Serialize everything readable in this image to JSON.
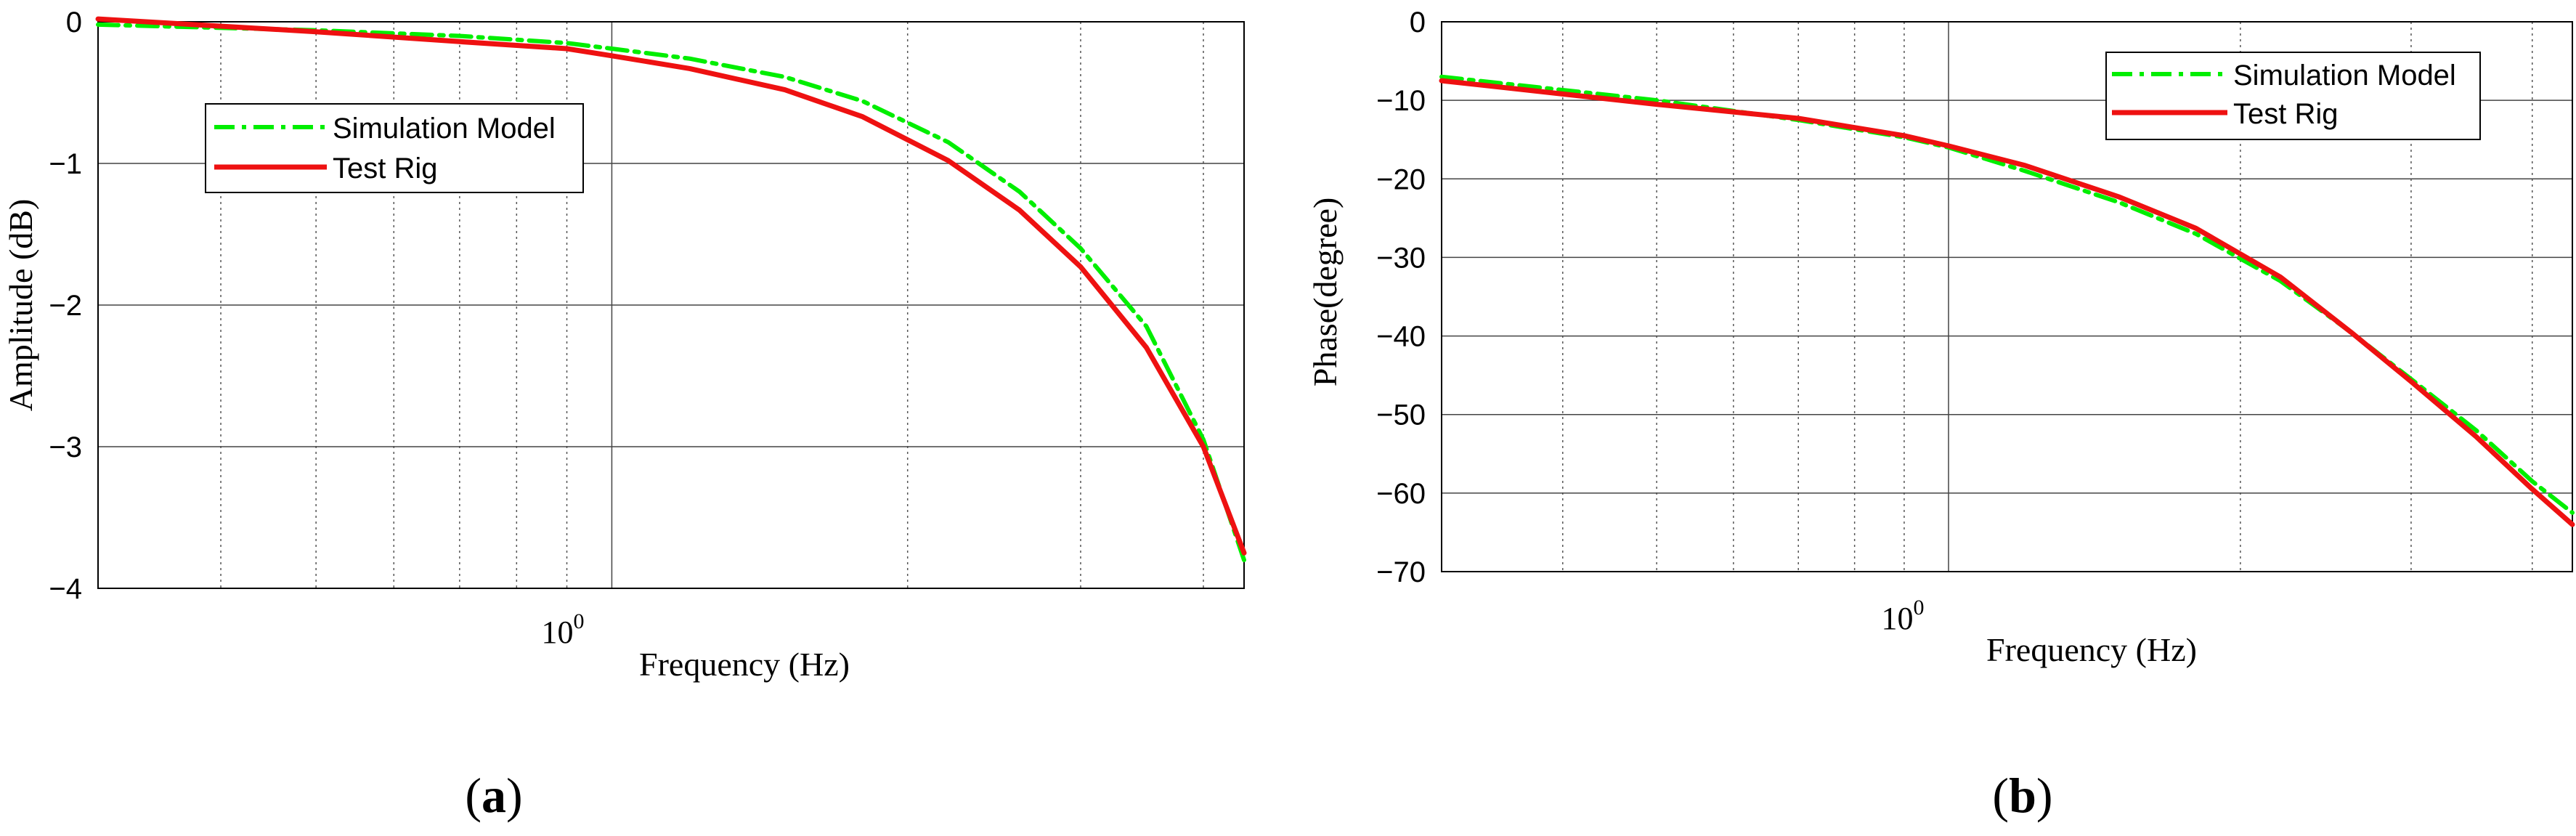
{
  "panels": [
    {
      "label_open": "(",
      "label_letter": "a",
      "label_close": ")"
    },
    {
      "label_open": "(",
      "label_letter": "b",
      "label_close": ")"
    }
  ],
  "chart_data": [
    {
      "type": "line",
      "xscale": "log",
      "xlim": [
        0.3,
        4.4
      ],
      "ylim": [
        -4,
        0
      ],
      "xlabel": "Frequency (Hz)",
      "ylabel": "Amplitude (dB)",
      "xtick_base": "10",
      "xtick_exp": "0",
      "yticks": [
        "0",
        "−1",
        "−2",
        "−3",
        "−4"
      ],
      "grid": true,
      "legend_position": "upper-left",
      "series": [
        {
          "name": "Simulation Model",
          "color": "#00ee00",
          "style": "dashdot",
          "x": [
            0.3,
            0.5,
            0.7,
            0.9,
            1.0,
            1.2,
            1.5,
            1.8,
            2.2,
            2.6,
            3.0,
            3.5,
            4.0,
            4.4
          ],
          "y": [
            -0.02,
            -0.06,
            -0.1,
            -0.15,
            -0.19,
            -0.26,
            -0.39,
            -0.56,
            -0.85,
            -1.2,
            -1.6,
            -2.15,
            -2.95,
            -3.8
          ]
        },
        {
          "name": "Test Rig",
          "color": "#ee1111",
          "style": "solid",
          "x": [
            0.3,
            0.5,
            0.7,
            0.9,
            1.0,
            1.2,
            1.5,
            1.8,
            2.2,
            2.6,
            3.0,
            3.5,
            4.0,
            4.4
          ],
          "y": [
            0.02,
            -0.07,
            -0.14,
            -0.19,
            -0.24,
            -0.33,
            -0.48,
            -0.67,
            -0.98,
            -1.33,
            -1.73,
            -2.3,
            -3.0,
            -3.75
          ]
        }
      ]
    },
    {
      "type": "line",
      "xscale": "log",
      "xlim": [
        0.3,
        4.4
      ],
      "ylim": [
        -70,
        0
      ],
      "xlabel": "Frequency (Hz)",
      "ylabel": "Phase(degree)",
      "xtick_base": "10",
      "xtick_exp": "0",
      "yticks": [
        "0",
        "−10",
        "−20",
        "−30",
        "−40",
        "−50",
        "−60",
        "−70"
      ],
      "grid": true,
      "legend_position": "upper-right",
      "series": [
        {
          "name": "Simulation Model",
          "color": "#00ee00",
          "style": "dashdot",
          "x": [
            0.3,
            0.5,
            0.7,
            0.9,
            1.0,
            1.2,
            1.5,
            1.8,
            2.2,
            2.6,
            3.0,
            3.5,
            4.0,
            4.4
          ],
          "y": [
            -7,
            -10,
            -12.5,
            -14.7,
            -16,
            -19,
            -23,
            -27,
            -33,
            -39.5,
            -45.5,
            -52,
            -58.5,
            -62.5
          ]
        },
        {
          "name": "Test Rig",
          "color": "#ee1111",
          "style": "solid",
          "x": [
            0.3,
            0.5,
            0.7,
            0.9,
            1.0,
            1.2,
            1.5,
            1.8,
            2.2,
            2.6,
            3.0,
            3.5,
            4.0,
            4.4
          ],
          "y": [
            -7.5,
            -10.5,
            -12.3,
            -14.5,
            -15.8,
            -18.3,
            -22.3,
            -26.3,
            -32.5,
            -39.5,
            -45.8,
            -52.8,
            -59.5,
            -64
          ]
        }
      ]
    }
  ]
}
